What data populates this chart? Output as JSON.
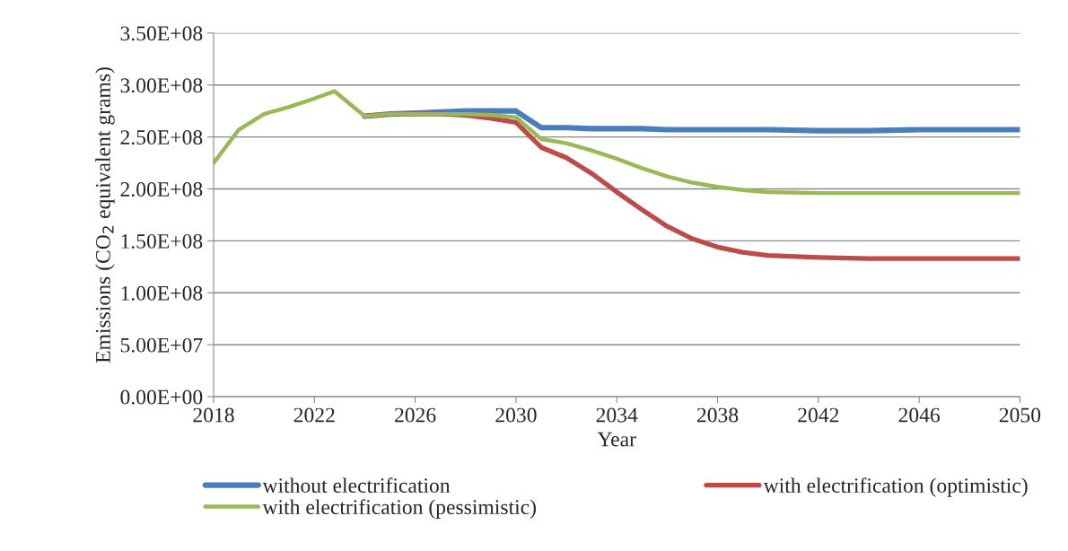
{
  "chart_data": {
    "type": "line",
    "xlabel": "Year",
    "ylabel": "Emissions (CO$_{2}$ equivalent grams)",
    "x": [
      2018,
      2019,
      2020,
      2021,
      2022,
      2022.8,
      2024,
      2025,
      2026,
      2027,
      2028,
      2029,
      2030,
      2031,
      2032,
      2033,
      2034,
      2035,
      2036,
      2037,
      2038,
      2039,
      2040,
      2042,
      2044,
      2046,
      2048,
      2050
    ],
    "series": [
      {
        "name": "without electrification",
        "color": "#4a7ebb",
        "values": [
          null,
          null,
          null,
          null,
          null,
          null,
          270000000,
          272000000,
          273000000,
          274000000,
          275000000,
          275000000,
          275000000,
          259000000,
          259000000,
          258000000,
          258000000,
          258000000,
          257000000,
          257000000,
          257000000,
          257000000,
          257000000,
          256000000,
          256000000,
          257000000,
          257000000,
          257000000
        ]
      },
      {
        "name": "with electrification (optimistic)",
        "color": "#be4b48",
        "values": [
          null,
          null,
          null,
          null,
          null,
          null,
          270000000,
          272000000,
          272000000,
          272000000,
          271000000,
          268000000,
          264000000,
          240000000,
          230000000,
          215000000,
          197000000,
          180000000,
          164000000,
          152000000,
          144000000,
          139000000,
          136000000,
          134000000,
          133000000,
          133000000,
          133000000,
          133000000
        ]
      },
      {
        "name": "with electrification (pessimistic)",
        "color": "#98b954",
        "values": [
          225000000,
          257000000,
          272000000,
          279000000,
          287000000,
          294000000,
          270000000,
          272000000,
          272000000,
          272000000,
          272000000,
          271000000,
          269000000,
          248000000,
          244000000,
          237000000,
          229000000,
          220000000,
          212000000,
          206000000,
          202000000,
          199000000,
          197000000,
          196000000,
          196000000,
          196000000,
          196000000,
          196000000
        ]
      }
    ],
    "xlim": [
      2018,
      2050
    ],
    "xticks": [
      2018,
      2022,
      2026,
      2030,
      2034,
      2038,
      2042,
      2046,
      2050
    ],
    "ylim": [
      0,
      350000000
    ],
    "yticks": [
      {
        "value": 0,
        "label": "0.00E+00"
      },
      {
        "value": 50000000,
        "label": "5.00E+07"
      },
      {
        "value": 100000000,
        "label": "1.00E+08"
      },
      {
        "value": 150000000,
        "label": "1.50E+08"
      },
      {
        "value": 200000000,
        "label": "2.00E+08"
      },
      {
        "value": 250000000,
        "label": "2.50E+08"
      },
      {
        "value": 300000000,
        "label": "3.00E+08"
      },
      {
        "value": 350000000,
        "label": "3.50E+08"
      }
    ],
    "grid": "y",
    "legend": "bottom",
    "marker": "none",
    "line_style": "solid"
  }
}
